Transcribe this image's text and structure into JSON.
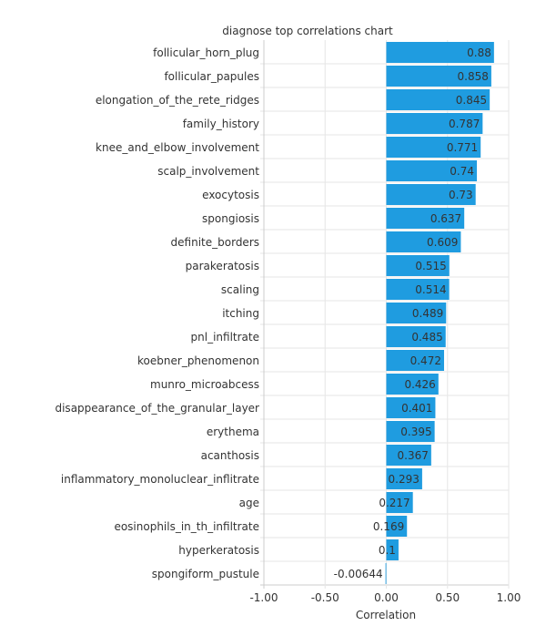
{
  "chart_data": {
    "type": "bar",
    "orientation": "horizontal",
    "title": "diagnose top correlations chart",
    "xlabel": "Correlation",
    "ylabel": "",
    "xlim": [
      -1,
      1
    ],
    "xticks": [
      "-1.00",
      "-0.50",
      "0.00",
      "0.50",
      "1.00"
    ],
    "xtick_values": [
      -1,
      -0.5,
      0,
      0.5,
      1
    ],
    "grid": true,
    "bar_color": "#1f9ce0",
    "categories": [
      "follicular_horn_plug",
      "follicular_papules",
      "elongation_of_the_rete_ridges",
      "family_history",
      "knee_and_elbow_involvement",
      "scalp_involvement",
      "exocytosis",
      "spongiosis",
      "definite_borders",
      "parakeratosis",
      "scaling",
      "itching",
      "pnl_infiltrate",
      "koebner_phenomenon",
      "munro_microabcess",
      "disappearance_of_the_granular_layer",
      "erythema",
      "acanthosis",
      "inflammatory_monoluclear_inflitrate",
      "age",
      "eosinophils_in_th_infiltrate",
      "hyperkeratosis",
      "spongiform_pustule"
    ],
    "values": [
      0.88,
      0.858,
      0.845,
      0.787,
      0.771,
      0.74,
      0.73,
      0.637,
      0.609,
      0.515,
      0.514,
      0.489,
      0.485,
      0.472,
      0.426,
      0.401,
      0.395,
      0.367,
      0.293,
      0.217,
      0.169,
      0.1,
      -0.00644
    ],
    "value_labels": [
      "0.88",
      "0.858",
      "0.845",
      "0.787",
      "0.771",
      "0.74",
      "0.73",
      "0.637",
      "0.609",
      "0.515",
      "0.514",
      "0.489",
      "0.485",
      "0.472",
      "0.426",
      "0.401",
      "0.395",
      "0.367",
      "0.293",
      "0.217",
      "0.169",
      "0.1",
      "-0.00644"
    ]
  }
}
